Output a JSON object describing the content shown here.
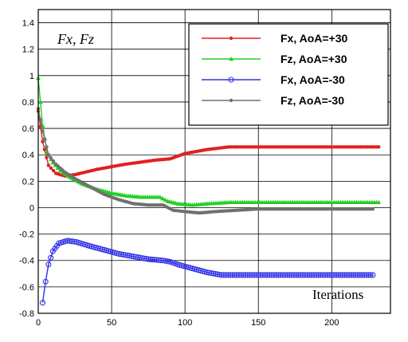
{
  "chart_data": {
    "type": "line",
    "ylabel": "Fx, Fz",
    "xlabel": "Iterations",
    "xlim": [
      0,
      240
    ],
    "ylim": [
      -0.8,
      1.5
    ],
    "x_ticks": [
      0,
      50,
      100,
      150,
      200
    ],
    "y_ticks": [
      -0.8,
      -0.6,
      -0.4,
      -0.2,
      0,
      0.2,
      0.4,
      0.6,
      0.8,
      1,
      1.2,
      1.4
    ],
    "grid": true,
    "legend_position": "top-right",
    "series": [
      {
        "name": "Fx, AoA=+30",
        "color": "#e02020",
        "marker": "dot",
        "points": [
          [
            0,
            0.73
          ],
          [
            3,
            0.5
          ],
          [
            7,
            0.32
          ],
          [
            12,
            0.26
          ],
          [
            18,
            0.24
          ],
          [
            25,
            0.25
          ],
          [
            40,
            0.29
          ],
          [
            60,
            0.33
          ],
          [
            80,
            0.36
          ],
          [
            90,
            0.37
          ],
          [
            100,
            0.41
          ],
          [
            115,
            0.44
          ],
          [
            130,
            0.46
          ],
          [
            150,
            0.46
          ],
          [
            200,
            0.46
          ],
          [
            232,
            0.46
          ]
        ]
      },
      {
        "name": "Fz, AoA=+30",
        "color": "#22d022",
        "marker": "triangle",
        "points": [
          [
            0,
            0.98
          ],
          [
            3,
            0.62
          ],
          [
            6,
            0.42
          ],
          [
            10,
            0.34
          ],
          [
            15,
            0.28
          ],
          [
            20,
            0.24
          ],
          [
            30,
            0.18
          ],
          [
            40,
            0.14
          ],
          [
            50,
            0.11
          ],
          [
            60,
            0.09
          ],
          [
            70,
            0.08
          ],
          [
            83,
            0.08
          ],
          [
            88,
            0.05
          ],
          [
            95,
            0.03
          ],
          [
            105,
            0.02
          ],
          [
            115,
            0.03
          ],
          [
            130,
            0.04
          ],
          [
            160,
            0.04
          ],
          [
            200,
            0.04
          ],
          [
            232,
            0.04
          ]
        ]
      },
      {
        "name": "Fx, AoA=-30",
        "color": "#3030e8",
        "marker": "circle",
        "points": [
          [
            3,
            -0.72
          ],
          [
            5,
            -0.56
          ],
          [
            7,
            -0.43
          ],
          [
            10,
            -0.33
          ],
          [
            14,
            -0.27
          ],
          [
            20,
            -0.25
          ],
          [
            26,
            -0.26
          ],
          [
            35,
            -0.29
          ],
          [
            45,
            -0.32
          ],
          [
            55,
            -0.35
          ],
          [
            65,
            -0.37
          ],
          [
            75,
            -0.39
          ],
          [
            85,
            -0.4
          ],
          [
            90,
            -0.41
          ],
          [
            95,
            -0.43
          ],
          [
            105,
            -0.46
          ],
          [
            115,
            -0.49
          ],
          [
            125,
            -0.51
          ],
          [
            150,
            -0.51
          ],
          [
            200,
            -0.51
          ],
          [
            228,
            -0.51
          ]
        ]
      },
      {
        "name": "Fz, AoA=-30",
        "color": "#707070",
        "marker": "dot",
        "points": [
          [
            0,
            0.75
          ],
          [
            3,
            0.58
          ],
          [
            7,
            0.4
          ],
          [
            12,
            0.33
          ],
          [
            18,
            0.27
          ],
          [
            25,
            0.22
          ],
          [
            35,
            0.16
          ],
          [
            45,
            0.1
          ],
          [
            55,
            0.06
          ],
          [
            65,
            0.03
          ],
          [
            75,
            0.02
          ],
          [
            85,
            0.02
          ],
          [
            92,
            -0.02
          ],
          [
            100,
            -0.03
          ],
          [
            110,
            -0.04
          ],
          [
            120,
            -0.03
          ],
          [
            135,
            -0.02
          ],
          [
            150,
            -0.01
          ],
          [
            200,
            -0.01
          ],
          [
            228,
            -0.01
          ]
        ]
      }
    ]
  }
}
